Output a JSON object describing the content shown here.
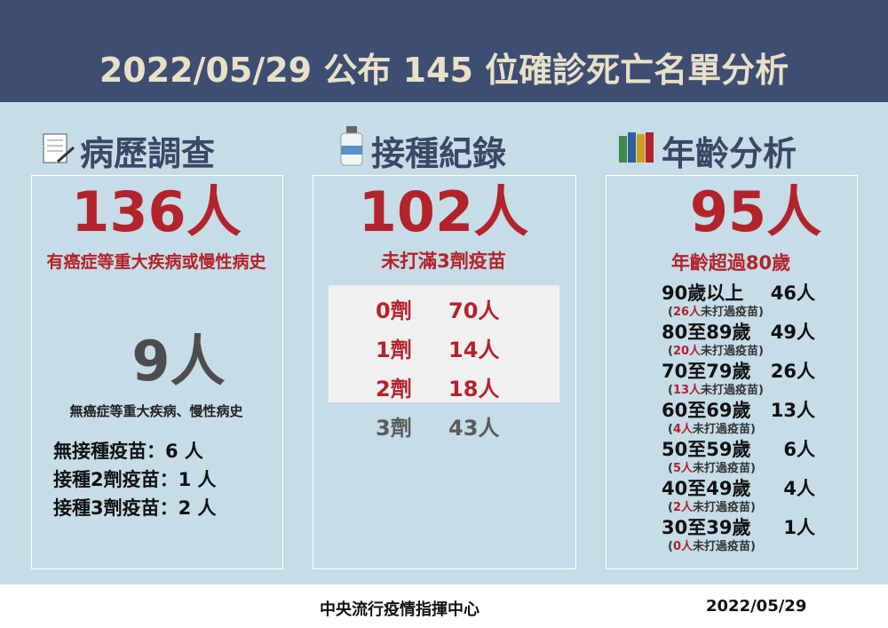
{
  "header": {
    "title": "2022/05/29 公布 145 位確診死亡名單分析"
  },
  "history": {
    "heading": "病歷調查",
    "main": "136人",
    "main_caption": "有癌症等重大疾病或慢性病史",
    "secondary": "9人",
    "secondary_caption": "無癌症等重大疾病、慢性病史",
    "items": [
      "無接種疫苗：6 人",
      "接種2劑疫苗：1 人",
      "接種3劑疫苗：2 人"
    ]
  },
  "vaccination": {
    "heading": "接種紀錄",
    "main": "102人",
    "main_caption": "未打滿3劑疫苗",
    "doses": [
      [
        "0劑",
        "70人"
      ],
      [
        "1劑",
        "14人"
      ],
      [
        "2劑",
        "18人"
      ],
      [
        "3劑",
        "43人"
      ]
    ]
  },
  "age": {
    "heading": "年齡分析",
    "main": "95人",
    "main_caption": "年齡超過80歲",
    "groups": [
      {
        "label": "90歲以上",
        "count": "46人",
        "note": [
          "(",
          "26人",
          "未打過疫苗)"
        ]
      },
      {
        "label": "80至89歲",
        "count": "49人",
        "note": [
          "(",
          "20人",
          "未打過疫苗)"
        ]
      },
      {
        "label": "70至79歲",
        "count": "26人",
        "note": [
          "(",
          "13人",
          "未打過疫苗)"
        ]
      },
      {
        "label": "60至69歲",
        "count": "13人",
        "note": [
          "(",
          "4人",
          "未打過疫苗)"
        ]
      },
      {
        "label": "50至59歲",
        "count": "6人",
        "note": [
          "(",
          "5人",
          "未打過疫苗)"
        ]
      },
      {
        "label": "40至49歲",
        "count": "4人",
        "note": [
          "(",
          "2人",
          "未打過疫苗)"
        ]
      },
      {
        "label": "30至39歲",
        "count": "1人",
        "note": [
          "(",
          "0人",
          "未打過疫苗)"
        ]
      }
    ]
  },
  "footer": {
    "source": "中央流行疫情指揮中心",
    "date": "2022/05/29"
  }
}
